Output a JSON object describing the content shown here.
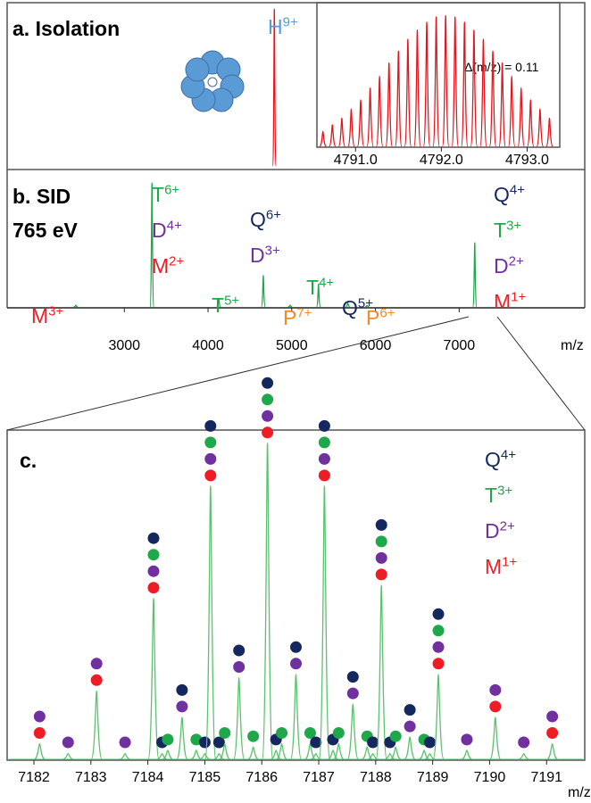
{
  "ion_colors": {
    "H": "#5b9bd5",
    "T": "#1fa84a",
    "D": "#7030a0",
    "M": "#ee1c25",
    "Q": "#14285f",
    "P": "#f08a2b"
  },
  "chart_data": [
    {
      "type": "spectrum",
      "title": "a. Isolation",
      "x": [
        4792
      ],
      "values": [
        100
      ],
      "xlim": [
        1600,
        8500
      ],
      "ylim": [
        0,
        100
      ],
      "color": "#e8141b",
      "annotations": [
        {
          "ions": [
            {
              "ion": "H",
              "charge": "9+"
            }
          ]
        }
      ]
    },
    {
      "type": "spectrum",
      "annotation": "Δ(m/z) = 0.11",
      "x": [
        4790.62,
        4790.73,
        4790.84,
        4790.95,
        4791.06,
        4791.17,
        4791.28,
        4791.39,
        4791.5,
        4791.61,
        4791.72,
        4791.83,
        4791.94,
        4792.05,
        4792.16,
        4792.27,
        4792.38,
        4792.49,
        4792.6,
        4792.71,
        4792.82,
        4792.93,
        4793.04,
        4793.15,
        4793.26
      ],
      "values": [
        12,
        17,
        22,
        29,
        36,
        45,
        54,
        64,
        73,
        82,
        89,
        95,
        99,
        100,
        99,
        95,
        89,
        82,
        73,
        64,
        54,
        45,
        36,
        29,
        22
      ],
      "xlim": [
        4790.55,
        4793.38
      ],
      "ylim": [
        0,
        105
      ],
      "color": "#e8141b",
      "xticks": [
        {
          "value": 4791,
          "label": "4791.0"
        },
        {
          "value": 4792,
          "label": "4792.0"
        },
        {
          "value": 4793,
          "label": "4793.0"
        }
      ]
    },
    {
      "type": "spectrum",
      "title": "b. SID",
      "subtitle": "765 eV",
      "x_label": "m/z",
      "x": [
        2420,
        3330,
        4128,
        4660,
        4980,
        5319,
        5670,
        5900,
        7186
      ],
      "values": [
        2,
        100,
        7,
        26,
        2,
        19,
        4,
        2,
        52
      ],
      "xlim": [
        1600,
        8500
      ],
      "ylim": [
        0,
        100
      ],
      "xticks": [
        3000,
        4000,
        5000,
        6000,
        7000
      ],
      "color": "#1fa84a",
      "annotations": [
        {
          "ions": [
            {
              "ion": "M",
              "charge": "3+"
            }
          ]
        },
        {
          "ions": [
            {
              "ion": "T",
              "charge": "6+"
            },
            {
              "ion": "D",
              "charge": "4+"
            },
            {
              "ion": "M",
              "charge": "2+"
            }
          ]
        },
        {
          "ions": [
            {
              "ion": "T",
              "charge": "5+"
            }
          ]
        },
        {
          "ions": [
            {
              "ion": "Q",
              "charge": "6+"
            },
            {
              "ion": "D",
              "charge": "3+"
            }
          ]
        },
        {
          "ions": [
            {
              "ion": "P",
              "charge": "7+"
            }
          ]
        },
        {
          "ions": [
            {
              "ion": "T",
              "charge": "4+"
            }
          ]
        },
        {
          "ions": [
            {
              "ion": "Q",
              "charge": "5+"
            }
          ]
        },
        {
          "ions": [
            {
              "ion": "P",
              "charge": "6+"
            }
          ]
        },
        {
          "ions": [
            {
              "ion": "Q",
              "charge": "4+"
            },
            {
              "ion": "T",
              "charge": "3+"
            },
            {
              "ion": "D",
              "charge": "2+"
            },
            {
              "ion": "M",
              "charge": "1+"
            }
          ]
        }
      ]
    },
    {
      "type": "spectrum",
      "title": "c.",
      "x_label": "m/z",
      "x": [
        7182.1,
        7182.6,
        7183.1,
        7183.6,
        7184.1,
        7184.25,
        7184.35,
        7184.6,
        7184.85,
        7185.0,
        7185.1,
        7185.25,
        7185.35,
        7185.6,
        7185.85,
        7186.1,
        7186.25,
        7186.35,
        7186.6,
        7186.85,
        7186.95,
        7187.1,
        7187.25,
        7187.35,
        7187.6,
        7187.85,
        7187.95,
        7188.1,
        7188.25,
        7188.35,
        7188.6,
        7188.85,
        7188.95,
        7189.1,
        7189.6,
        7190.1,
        7190.6,
        7191.1
      ],
      "values": [
        5,
        2,
        21,
        2,
        49,
        2,
        3,
        13,
        3,
        2,
        83,
        2,
        5,
        25,
        4,
        96,
        3,
        5,
        26,
        5,
        2,
        83,
        3,
        5,
        17,
        4,
        2,
        53,
        2,
        4,
        7,
        3,
        2,
        26,
        3,
        13,
        2,
        5
      ],
      "ions": [
        [
          "M",
          "D"
        ],
        [
          "D"
        ],
        [
          "M",
          "D"
        ],
        [
          "D"
        ],
        [
          "M",
          "D",
          "T",
          "Q"
        ],
        [
          "Q"
        ],
        [
          "T"
        ],
        [
          "D",
          "Q"
        ],
        [
          "T"
        ],
        [
          "Q"
        ],
        [
          "M",
          "D",
          "T",
          "Q"
        ],
        [
          "Q"
        ],
        [
          "T"
        ],
        [
          "D",
          "Q"
        ],
        [
          "T"
        ],
        [
          "M",
          "D",
          "T",
          "Q"
        ],
        [
          "Q"
        ],
        [
          "T"
        ],
        [
          "D",
          "Q"
        ],
        [
          "T"
        ],
        [
          "Q"
        ],
        [
          "M",
          "D",
          "T",
          "Q"
        ],
        [
          "Q"
        ],
        [
          "T"
        ],
        [
          "D",
          "Q"
        ],
        [
          "T"
        ],
        [
          "Q"
        ],
        [
          "M",
          "D",
          "T",
          "Q"
        ],
        [
          "Q"
        ],
        [
          "T"
        ],
        [
          "D",
          "Q"
        ],
        [
          "T"
        ],
        [
          "Q"
        ],
        [
          "M",
          "D",
          "T",
          "Q"
        ],
        [
          "D"
        ],
        [
          "M",
          "D"
        ],
        [
          "D"
        ],
        [
          "M",
          "D"
        ]
      ],
      "xlim": [
        7181.53,
        7191.67
      ],
      "ylim": [
        0,
        100
      ],
      "xticks": [
        7182,
        7183,
        7184,
        7185,
        7186,
        7187,
        7188,
        7189,
        7190,
        7191
      ],
      "color": "#5cc26e",
      "legend": [
        {
          "ion": "Q",
          "charge": "4+"
        },
        {
          "ion": "T",
          "charge": "3+"
        },
        {
          "ion": "D",
          "charge": "2+"
        },
        {
          "ion": "M",
          "charge": "1+"
        }
      ]
    }
  ]
}
